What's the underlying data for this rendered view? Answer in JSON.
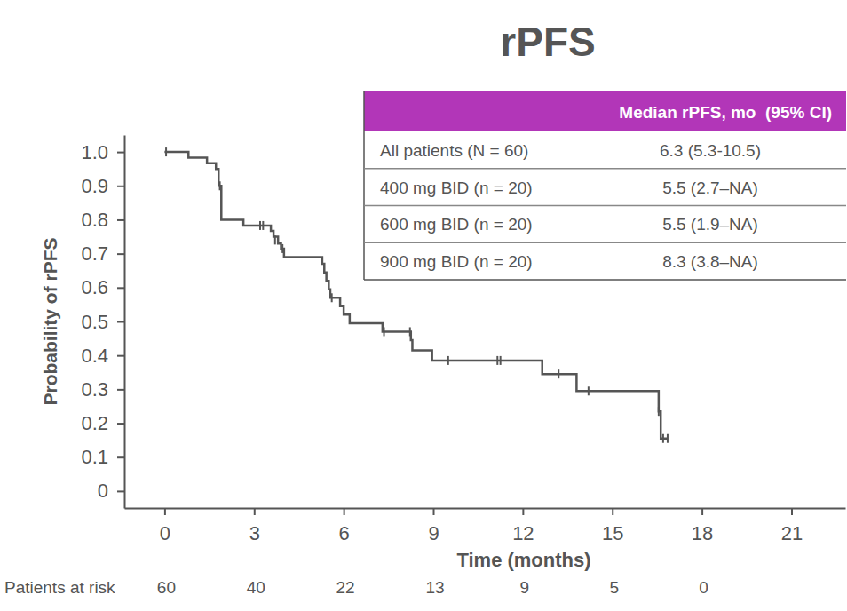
{
  "chart_data": {
    "type": "step",
    "title": "rPFS",
    "x_label": "Time (months)",
    "y_label": "Probability of rPFS",
    "xlim": [
      -1.35,
      22.8
    ],
    "ylim": [
      -0.05,
      1.05
    ],
    "xticks": [
      0,
      3,
      6,
      9,
      12,
      15,
      18,
      21
    ],
    "yticks": [
      {
        "value": 1,
        "label": "1.0"
      },
      0.9,
      0.8,
      0.7,
      0.6,
      0.5,
      0.4,
      0.3,
      0.2,
      0.1,
      0
    ],
    "grid": false,
    "series": [
      {
        "type": "step",
        "color": "#555555",
        "x": [
          0,
          0.8,
          1.42,
          1.72,
          1.81,
          1.9,
          2.64,
          3.56,
          3.65,
          3.8,
          3.9,
          4.0,
          5.28,
          5.35,
          5.42,
          5.5,
          5.55,
          5.88,
          6.0,
          6.2,
          7.3,
          8.25,
          8.3,
          8.96,
          12.65,
          13.8,
          16.55,
          16.62,
          16.85
        ],
        "values": [
          1,
          0.983,
          0.967,
          0.95,
          0.9,
          0.8,
          0.783,
          0.767,
          0.75,
          0.73,
          0.715,
          0.69,
          0.67,
          0.645,
          0.62,
          0.595,
          0.57,
          0.545,
          0.52,
          0.495,
          0.47,
          0.445,
          0.415,
          0.385,
          0.345,
          0.295,
          0.235,
          0.155,
          0.155
        ]
      },
      {
        "type": "scatter",
        "marker": "tick",
        "color": "#555555",
        "x": [
          0.05,
          1.85,
          3.2,
          3.3,
          3.7,
          3.95,
          5.6,
          7.35,
          8.22,
          9.5,
          11.15,
          11.25,
          13.2,
          14.2,
          16.55,
          16.7,
          16.85
        ],
        "values": [
          1,
          0.9,
          0.783,
          0.783,
          0.74,
          0.715,
          0.57,
          0.47,
          0.47,
          0.385,
          0.385,
          0.385,
          0.345,
          0.295,
          0.235,
          0.155,
          0.155
        ]
      }
    ],
    "table": {
      "header": "Median rPFS, mo  (95% CI)",
      "rows": [
        [
          "All patients (N = 60)",
          "6.3 (5.3-10.5)"
        ],
        [
          "400 mg BID (n = 20)",
          "5.5 (2.7–NA)"
        ],
        [
          "600 mg BID (n = 20)",
          "5.5 (1.9–NA)"
        ],
        [
          "900 mg BID (n = 20)",
          "8.3 (3.8–NA)"
        ]
      ]
    },
    "at_risk": {
      "label": "Patients at risk",
      "x": [
        0,
        3,
        6,
        9,
        12,
        15,
        18
      ],
      "values": [
        60,
        40,
        22,
        13,
        9,
        5,
        0
      ]
    }
  }
}
